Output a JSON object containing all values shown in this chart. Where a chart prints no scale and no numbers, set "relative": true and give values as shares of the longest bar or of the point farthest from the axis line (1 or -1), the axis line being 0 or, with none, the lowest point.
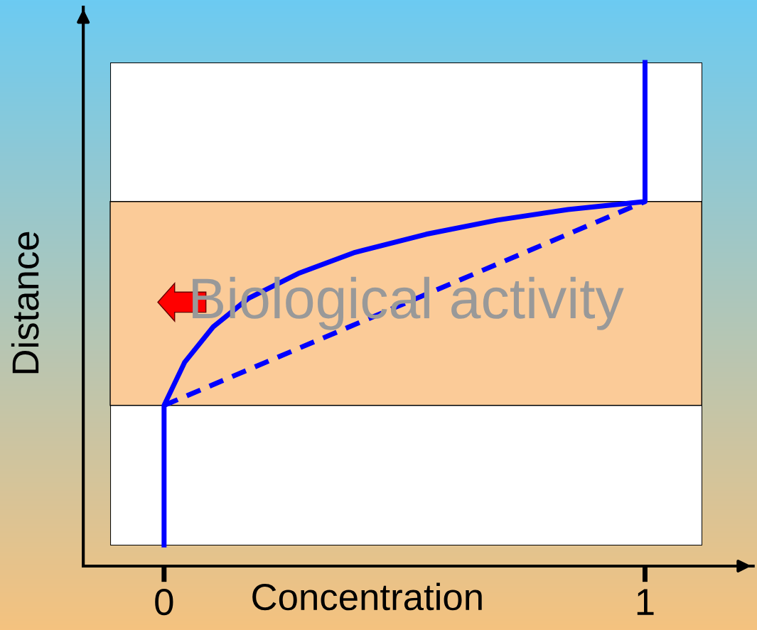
{
  "chart_data": {
    "type": "line",
    "relative": true,
    "xlabel": "Concentration",
    "ylabel": "Distance",
    "xlim": [
      -0.168,
      1.225
    ],
    "xticks": [
      0,
      1
    ],
    "marker": "none",
    "series": [
      {
        "color": "#0000ff",
        "line_style": "solid",
        "x": [
          0,
          0,
          0.043,
          0.102,
          0.176,
          0.279,
          0.397,
          0.545,
          0.693,
          0.84,
          1,
          1
        ],
        "values": [
          0.042,
          0.319,
          0.405,
          0.475,
          0.532,
          0.581,
          0.623,
          0.659,
          0.687,
          0.708,
          0.724,
          1.0
        ]
      },
      {
        "color": "#0000ff",
        "line_style": "dashed",
        "x": [
          0,
          1
        ],
        "values": [
          0.319,
          0.724
        ]
      }
    ],
    "bands": [
      {
        "axis": "y",
        "from": 0.319,
        "to": 0.724,
        "label": "Biological activity",
        "color": "#fbcb98"
      }
    ]
  }
}
